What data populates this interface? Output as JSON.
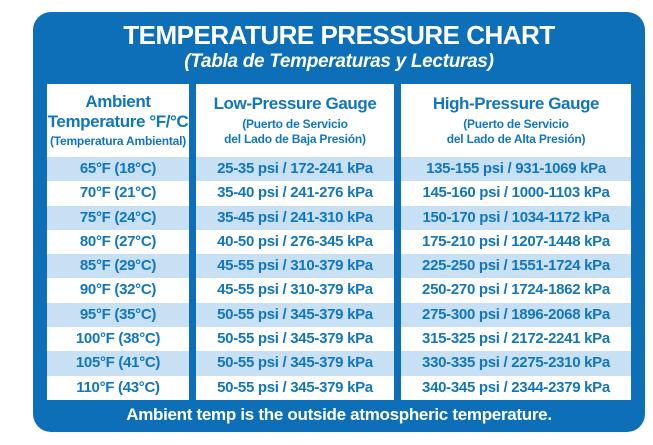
{
  "card": {
    "title": "TEMPERATURE PRESSURE CHART",
    "subtitle": "(Tabla de Temperaturas y Lecturas)",
    "footer": "Ambient temp is the outside atmospheric temperature."
  },
  "table": {
    "columns": [
      {
        "title_lines": [
          "Ambient",
          "Temperature °F/°C"
        ],
        "subtitle_lines": [
          "(Temperatura Ambiental)"
        ]
      },
      {
        "title_lines": [
          "Low-Pressure Gauge"
        ],
        "subtitle_lines": [
          "(Puerto de Servicio",
          "del Lado de Baja Presión)"
        ]
      },
      {
        "title_lines": [
          "High-Pressure Gauge"
        ],
        "subtitle_lines": [
          "(Puerto de Servicio",
          "del Lado de Alta Presión)"
        ]
      }
    ]
  },
  "chart_data": {
    "type": "table",
    "title": "TEMPERATURE PRESSURE CHART",
    "subtitle": "(Tabla de Temperaturas y Lecturas)",
    "columns": [
      "Ambient Temperature °F/°C (Temperatura Ambiental)",
      "Low-Pressure Gauge (Puerto de Servicio del Lado de Baja Presión)",
      "High-Pressure Gauge (Puerto de Servicio del Lado de Alta Presión)"
    ],
    "rows": [
      [
        "65°F (18°C)",
        "25-35 psi / 172-241 kPa",
        "135-155 psi / 931-1069 kPa"
      ],
      [
        "70°F (21°C)",
        "35-40 psi / 241-276 kPa",
        "145-160 psi / 1000-1103 kPa"
      ],
      [
        "75°F (24°C)",
        "35-45 psi / 241-310 kPa",
        "150-170 psi / 1034-1172 kPa"
      ],
      [
        "80°F (27°C)",
        "40-50 psi / 276-345 kPa",
        "175-210 psi / 1207-1448 kPa"
      ],
      [
        "85°F (29°C)",
        "45-55 psi / 310-379 kPa",
        "225-250 psi / 1551-1724 kPa"
      ],
      [
        "90°F (32°C)",
        "45-55 psi / 310-379 kPa",
        "250-270 psi / 1724-1862 kPa"
      ],
      [
        "95°F (35°C)",
        "50-55 psi / 345-379 kPa",
        "275-300 psi / 1896-2068 kPa"
      ],
      [
        "100°F (38°C)",
        "50-55 psi / 345-379 kPa",
        "315-325 psi / 2172-2241 kPa"
      ],
      [
        "105°F (41°C)",
        "50-55 psi / 345-379 kPa",
        "330-335 psi / 2275-2310 kPa"
      ],
      [
        "110°F (43°C)",
        "50-55 psi / 345-379 kPa",
        "340-345 psi / 2344-2379 kPa"
      ]
    ],
    "note": "Ambient temp is the outside atmospheric temperature.",
    "row_striping": "alternating light blue starting with first data row"
  },
  "colors": {
    "card_blue": "#0D6FB8",
    "row_light_blue": "#C7E0F3",
    "text_blue": "#1176BE"
  }
}
